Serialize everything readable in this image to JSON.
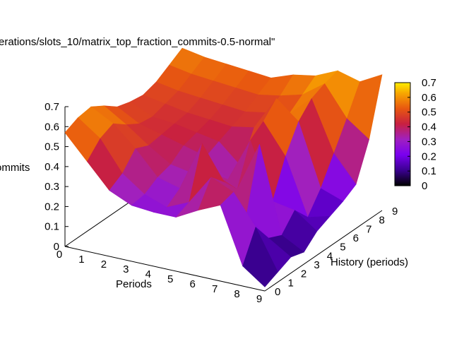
{
  "chart_data": {
    "type": "surface",
    "title": "erations/slots_10/matrix_top_fraction_commits-0.5-normal\"",
    "xlabel": "Periods",
    "ylabel": "History (periods)",
    "zlabel": "ommits",
    "x": [
      0,
      1,
      2,
      3,
      4,
      5,
      6,
      7,
      8,
      9
    ],
    "y": [
      0,
      1,
      2,
      3,
      4,
      5,
      6,
      7,
      8,
      9
    ],
    "z_ticks": [
      "0",
      "0.1",
      "0.2",
      "0.3",
      "0.4",
      "0.5",
      "0.6",
      "0.7"
    ],
    "x_ticks": [
      "0",
      "1",
      "2",
      "3",
      "4",
      "5",
      "6",
      "7",
      "8",
      "9"
    ],
    "y_ticks": [
      "0",
      "1",
      "2",
      "3",
      "4",
      "5",
      "6",
      "7",
      "8",
      "9"
    ],
    "zlim": [
      0,
      0.7
    ],
    "colorbar": {
      "ticks": [
        "0",
        "0.1",
        "0.2",
        "0.3",
        "0.4",
        "0.5",
        "0.6",
        "0.7"
      ],
      "range": [
        0,
        0.7
      ],
      "palette": [
        "#000000",
        "#2a0070",
        "#5a00c8",
        "#8a00f0",
        "#a020c0",
        "#c02060",
        "#e04818",
        "#f07808",
        "#f8b000",
        "#ffea00"
      ]
    },
    "z": [
      [
        0.57,
        0.6,
        0.61,
        0.57,
        0.52,
        0.5,
        0.49,
        0.51,
        0.55,
        0.59
      ],
      [
        0.45,
        0.52,
        0.55,
        0.5,
        0.46,
        0.45,
        0.47,
        0.49,
        0.53,
        0.57
      ],
      [
        0.33,
        0.37,
        0.45,
        0.42,
        0.43,
        0.44,
        0.45,
        0.48,
        0.52,
        0.56
      ],
      [
        0.28,
        0.29,
        0.33,
        0.35,
        0.4,
        0.42,
        0.44,
        0.47,
        0.51,
        0.55
      ],
      [
        0.27,
        0.25,
        0.3,
        0.33,
        0.37,
        0.4,
        0.43,
        0.46,
        0.5,
        0.54
      ],
      [
        0.27,
        0.3,
        0.55,
        0.35,
        0.28,
        0.3,
        0.45,
        0.48,
        0.52,
        0.58
      ],
      [
        0.33,
        0.45,
        0.38,
        0.3,
        0.5,
        0.55,
        0.62,
        0.5,
        0.55,
        0.6
      ],
      [
        0.38,
        0.4,
        0.24,
        0.55,
        0.22,
        0.4,
        0.53,
        0.6,
        0.63,
        0.65
      ],
      [
        0.1,
        0.25,
        0.15,
        0.12,
        0.2,
        0.12,
        0.22,
        0.35,
        0.48,
        0.62
      ],
      [
        0.02,
        0.05,
        0.08,
        0.06,
        0.12,
        0.15,
        0.18,
        0.22,
        0.4,
        0.68
      ]
    ]
  }
}
